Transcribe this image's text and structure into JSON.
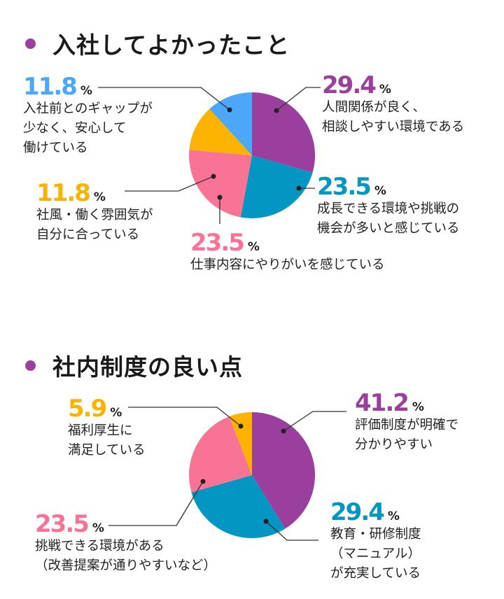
{
  "colors": {
    "purple": "#9b3f9f",
    "teal": "#0396c2",
    "pink": "#f97394",
    "yellow": "#fbb300",
    "lightblue": "#4ca7f8",
    "bullet": "#9b3f9f"
  },
  "chart_data": [
    {
      "type": "pie",
      "title": "入社してよかったこと",
      "start": "top",
      "direction": "clockwise",
      "slices": [
        {
          "label": "人間関係が良く、\n相談しやすい環境である",
          "value": 29.4,
          "color": "#9b3f9f"
        },
        {
          "label": "成長できる環境や挑戦の\n機会が多いと感じている",
          "value": 23.5,
          "color": "#0396c2"
        },
        {
          "label": "仕事内容にやりがいを感じている",
          "value": 23.5,
          "color": "#f97394"
        },
        {
          "label": "社風・働く雰囲気が\n自分に合っている",
          "value": 11.8,
          "color": "#fbb300"
        },
        {
          "label": "入社前とのギャップが\n少なく、安心して\n働けている",
          "value": 11.8,
          "color": "#4ca7f8"
        }
      ]
    },
    {
      "type": "pie",
      "title": "社内制度の良い点",
      "start": "top",
      "direction": "clockwise",
      "slices": [
        {
          "label": "評価制度が明確で\n分かりやすい",
          "value": 41.2,
          "color": "#9b3f9f"
        },
        {
          "label": "教育・研修制度\n（マニュアル）\nが充実している",
          "value": 29.4,
          "color": "#0396c2"
        },
        {
          "label": "挑戦できる環境がある\n（改善提案が通りやすいなど）",
          "value": 23.5,
          "color": "#f97394"
        },
        {
          "label": "福利厚生に\n満足している",
          "value": 5.9,
          "color": "#fbb300"
        }
      ]
    }
  ],
  "display": {
    "pct": "%",
    "c1": {
      "s0": "29.4",
      "s1": "23.5",
      "s2": "23.5",
      "s3": "11.8",
      "s4": "11.8"
    },
    "c2": {
      "s0": "41.2",
      "s1": "29.4",
      "s2": "23.5",
      "s3": "5.9"
    }
  }
}
